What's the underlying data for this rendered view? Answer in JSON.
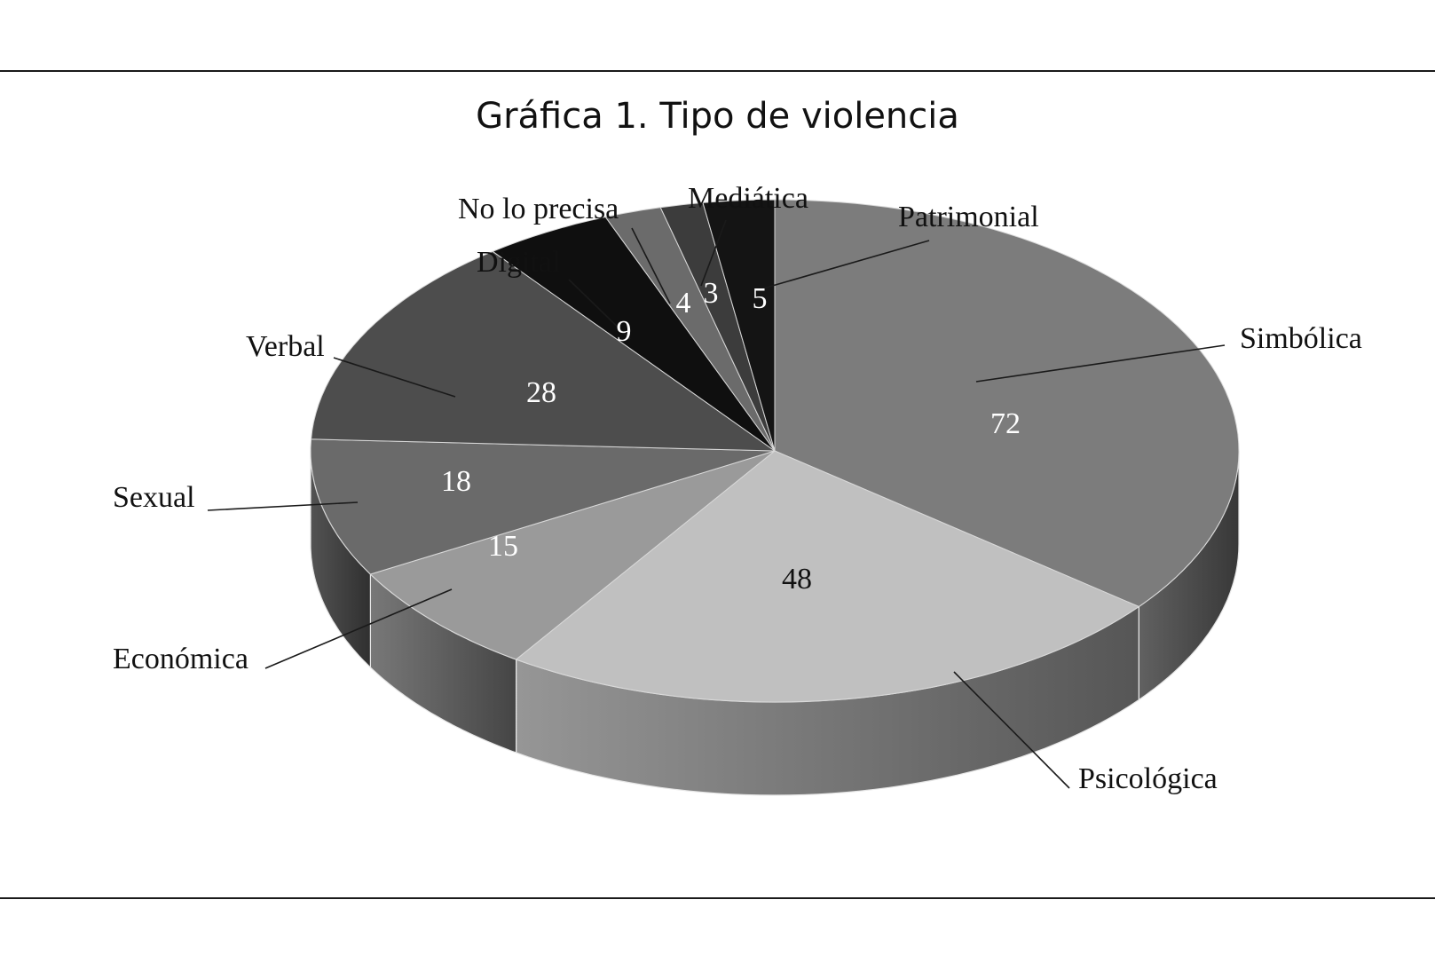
{
  "chart_data": {
    "type": "pie",
    "title": "Gráfica 1. Tipo de violencia",
    "style": "3d",
    "slices": [
      {
        "label": "Simbólica",
        "value": 72,
        "color": "#7c7c7c",
        "value_color": "#ffffff"
      },
      {
        "label": "Psicológica",
        "value": 48,
        "color": "#c0c0c0",
        "value_color": "#111111"
      },
      {
        "label": "Económica",
        "value": 15,
        "color": "#9a9a9a",
        "value_color": "#ffffff"
      },
      {
        "label": "Sexual",
        "value": 18,
        "color": "#6a6a6a",
        "value_color": "#ffffff"
      },
      {
        "label": "Verbal",
        "value": 28,
        "color": "#4d4d4d",
        "value_color": "#ffffff"
      },
      {
        "label": "Digital",
        "value": 9,
        "color": "#0f0f0f",
        "value_color": "#ffffff"
      },
      {
        "label": "No lo precisa",
        "value": 4,
        "color": "#6b6b6b",
        "value_color": "#ffffff"
      },
      {
        "label": "Mediática",
        "value": 3,
        "color": "#3c3c3c",
        "value_color": "#ffffff"
      },
      {
        "label": "Patrimonial",
        "value": 5,
        "color": "#141414",
        "value_color": "#ffffff"
      }
    ]
  }
}
